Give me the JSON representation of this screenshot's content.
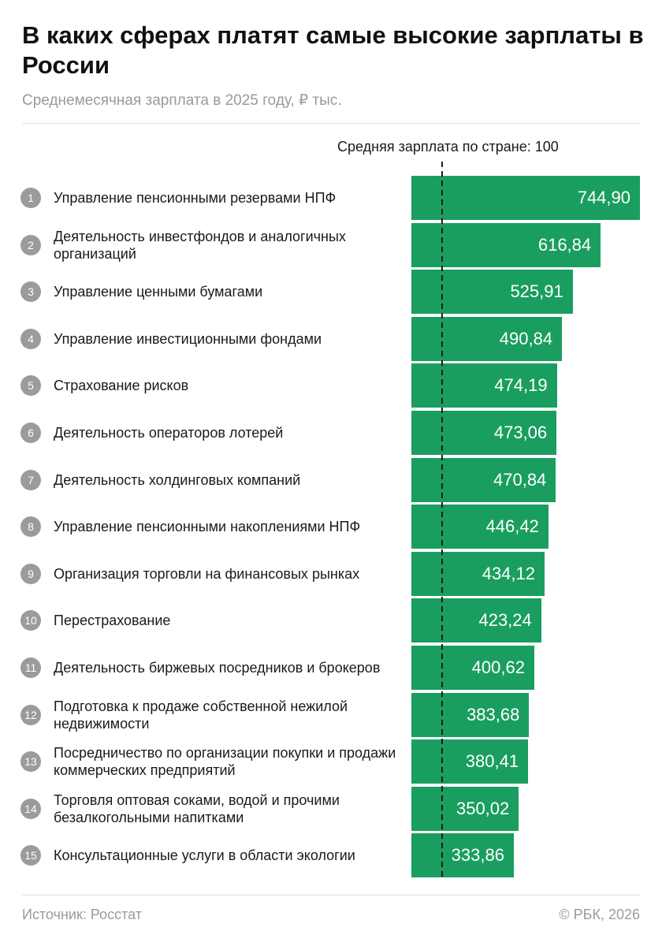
{
  "title": "В каких сферах платят самые высокие зарплаты в России",
  "subtitle": "Среднемесячная зарплата в 2025 году, ₽ тыс.",
  "footer": {
    "source": "Источник: Росстат",
    "copyright": "© РБК, 2026"
  },
  "colors": {
    "bar": "#1a9e5f",
    "badge": "#9b9b9b"
  },
  "chart_data": {
    "type": "bar",
    "orientation": "horizontal",
    "title": "В каких сферах платят самые высокие зарплаты в России",
    "subtitle": "Среднемесячная зарплата в 2025 году, ₽ тыс.",
    "reference_line": {
      "label": "Средняя зарплата по стране: 100",
      "value": 100,
      "style": "dashed"
    },
    "ranks": [
      "1",
      "2",
      "3",
      "4",
      "5",
      "6",
      "7",
      "8",
      "9",
      "10",
      "11",
      "12",
      "13",
      "14",
      "15"
    ],
    "categories": [
      "Управление пенсионными резервами НПФ",
      "Деятельность инвестфондов и аналогичных организаций",
      "Управление ценными бумагами",
      "Управление инвестиционными фондами",
      "Страхование рисков",
      "Деятельность операторов лотерей",
      "Деятельность холдинговых компаний",
      "Управление пенсионными накоплениями НПФ",
      "Организация торговли на финансовых рынках",
      "Перестрахование",
      "Деятельность биржевых посредников и брокеров",
      "Подготовка к продаже собственной нежилой недвижимости",
      "Посредничество по организации покупки и продажи коммерческих предприятий",
      "Торговля оптовая соками, водой и прочими безалкогольными напитками",
      "Консультационные услуги в области экологии"
    ],
    "values": [
      744.9,
      616.84,
      525.91,
      490.84,
      474.19,
      473.06,
      470.84,
      446.42,
      434.12,
      423.24,
      400.62,
      383.68,
      380.41,
      350.02,
      333.86
    ],
    "value_labels": [
      "744,90",
      "616,84",
      "525,91",
      "490,84",
      "474,19",
      "473,06",
      "470,84",
      "446,42",
      "434,12",
      "423,24",
      "400,62",
      "383,68",
      "380,41",
      "350,02",
      "333,86"
    ],
    "xlim": [
      0,
      744.9
    ],
    "grid": false,
    "legend": "none"
  }
}
